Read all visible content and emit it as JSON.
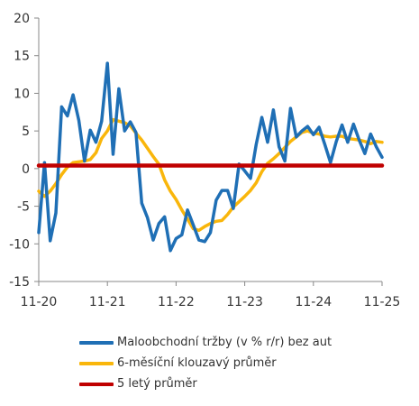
{
  "chart_data": {
    "type": "line",
    "ylim": [
      -15,
      20
    ],
    "yticks": [
      -15,
      -10,
      -5,
      0,
      5,
      10,
      15,
      20
    ],
    "xlim": [
      0,
      60
    ],
    "xticks": [
      {
        "pos": 0,
        "label": "11-20"
      },
      {
        "pos": 12,
        "label": "11-21"
      },
      {
        "pos": 24,
        "label": "11-22"
      },
      {
        "pos": 36,
        "label": "11-23"
      },
      {
        "pos": 48,
        "label": "11-24"
      },
      {
        "pos": 60,
        "label": "11-25"
      }
    ],
    "grid": false,
    "legend_position": "bottom",
    "series": [
      {
        "name": "Maloobchodní tržby (v % r/r) bez aut",
        "color": "#1f6fb5",
        "x": [
          0,
          1,
          2,
          3,
          4,
          5,
          6,
          7,
          8,
          9,
          10,
          11,
          12,
          13,
          14,
          15,
          16,
          17,
          18,
          19,
          20,
          21,
          22,
          23,
          24,
          25,
          26,
          27,
          28,
          29,
          30,
          31,
          32,
          33,
          34,
          35,
          36,
          37,
          38,
          39,
          40,
          41,
          42,
          43,
          44,
          45,
          46,
          47,
          48,
          49,
          50,
          51,
          52,
          53,
          54,
          55,
          56,
          57,
          58,
          59,
          60
        ],
        "values": [
          -8.5,
          0.8,
          -9.6,
          -5.9,
          8.2,
          7,
          9.8,
          6.4,
          1,
          5.1,
          3.5,
          6.3,
          14,
          1.9,
          10.6,
          5,
          6.2,
          4.8,
          -4.6,
          -6.5,
          -9.5,
          -7.3,
          -6.4,
          -10.9,
          -9.3,
          -8.8,
          -5.5,
          -7.5,
          -9.5,
          -9.7,
          -8.5,
          -4.2,
          -2.9,
          -2.9,
          -5.3,
          0.6,
          -0.3,
          -1.3,
          3.2,
          6.8,
          3.5,
          7.8,
          2.9,
          1,
          8,
          4.2,
          5,
          5.6,
          4.5,
          5.5,
          3.2,
          0.8,
          3.6,
          5.8,
          3.5,
          5.9,
          3.8,
          2,
          4.6,
          2.9,
          1.5
        ]
      },
      {
        "name": "6-měsíční klouzavý průměr",
        "color": "#f9b60b",
        "x": [
          0,
          1,
          2,
          3,
          4,
          5,
          6,
          7,
          8,
          9,
          10,
          11,
          12,
          13,
          14,
          15,
          16,
          17,
          18,
          19,
          20,
          21,
          22,
          23,
          24,
          25,
          26,
          27,
          28,
          29,
          30,
          31,
          32,
          33,
          34,
          35,
          36,
          37,
          38,
          39,
          40,
          41,
          42,
          43,
          44,
          45,
          46,
          47,
          48,
          49,
          50,
          51,
          52,
          53,
          54,
          55,
          56,
          57,
          58,
          59,
          60
        ],
        "values": [
          -3,
          -3.7,
          -3,
          -2,
          -0.8,
          0.2,
          0.8,
          0.9,
          1,
          1.2,
          2.1,
          4,
          5,
          6.5,
          6.3,
          6.1,
          5.7,
          4.7,
          3.8,
          2.7,
          1.6,
          0.6,
          -1.5,
          -3,
          -4.1,
          -5.5,
          -6.7,
          -8,
          -8.2,
          -7.7,
          -7.3,
          -7,
          -6.9,
          -6.1,
          -5.1,
          -4.4,
          -3.7,
          -2.9,
          -1.9,
          -0.4,
          0.7,
          1.3,
          2,
          2.8,
          3.6,
          4.2,
          4.8,
          5,
          4.7,
          4.6,
          4.3,
          4.2,
          4.3,
          4.3,
          4,
          3.9,
          3.8,
          3.6,
          3.3,
          3.6,
          3.5
        ]
      },
      {
        "name": "5 letý průměr",
        "color": "#c00000",
        "x": [
          0,
          60
        ],
        "values": [
          0.4,
          0.4
        ]
      }
    ]
  }
}
